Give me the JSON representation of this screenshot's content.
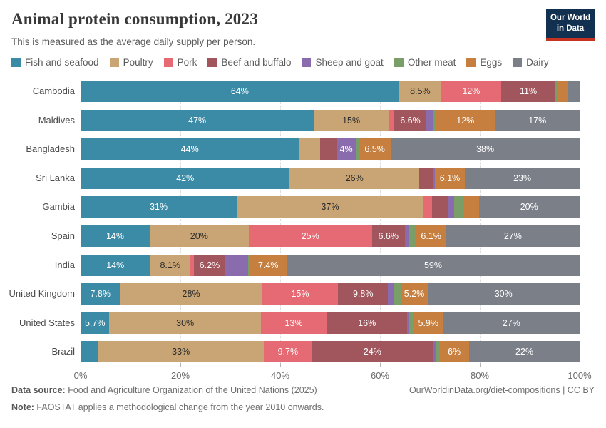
{
  "header": {
    "title": "Animal protein consumption, 2023",
    "subtitle": "This is measured as the average daily supply per person.",
    "logo_line1": "Our World",
    "logo_line2": "in Data",
    "logo_bg_color": "#12304f",
    "logo_stripe_color": "#c5321f"
  },
  "footer": {
    "data_source_label": "Data source:",
    "data_source_text": " Food and Agriculture Organization of the United Nations (2025)",
    "note_label": "Note:",
    "note_text": " FAOSTAT applies a methodological change from the year 2010 onwards.",
    "right_text": "OurWorldinData.org/diet-compositions | CC BY"
  },
  "chart_data": {
    "type": "bar",
    "variant": "horizontal-stacked",
    "title": "Animal protein consumption, 2023",
    "unit": "%",
    "xlim": [
      0,
      100
    ],
    "x_ticks": [
      "0%",
      "20%",
      "40%",
      "60%",
      "80%",
      "100%"
    ],
    "grid": "dashed-vertical",
    "legend_position": "top",
    "categories": [
      {
        "label": "Fish and seafood",
        "color": "#3b8ba7",
        "text_color": "#ffffff"
      },
      {
        "label": "Poultry",
        "color": "#c9a576",
        "text_color": "#2b2b2b"
      },
      {
        "label": "Pork",
        "color": "#e56a73",
        "text_color": "#ffffff"
      },
      {
        "label": "Beef and buffalo",
        "color": "#a0565c",
        "text_color": "#ffffff"
      },
      {
        "label": "Sheep and goat",
        "color": "#8a6bad",
        "text_color": "#ffffff"
      },
      {
        "label": "Other meat",
        "color": "#7a9e67",
        "text_color": "#ffffff"
      },
      {
        "label": "Eggs",
        "color": "#c67f3f",
        "text_color": "#ffffff"
      },
      {
        "label": "Dairy",
        "color": "#7b7f88",
        "text_color": "#ffffff"
      }
    ],
    "rows": [
      {
        "label": "Cambodia",
        "values": [
          64,
          8.5,
          12,
          11,
          0,
          0.3,
          2.1,
          2.4
        ],
        "segment_labels": [
          "64%",
          "8.5%",
          "12%",
          "11%",
          "",
          "",
          "",
          ""
        ]
      },
      {
        "label": "Maldives",
        "values": [
          47,
          15,
          1.1,
          6.6,
          1.4,
          0.4,
          12,
          17
        ],
        "segment_labels": [
          "47%",
          "15%",
          "",
          "6.6%",
          "",
          "",
          "12%",
          "17%"
        ]
      },
      {
        "label": "Bangladesh",
        "values": [
          44,
          4.3,
          0,
          3.2,
          4,
          0.5,
          6.5,
          38
        ],
        "segment_labels": [
          "44%",
          "",
          "",
          "",
          "4%",
          "",
          "6.5%",
          "38%"
        ]
      },
      {
        "label": "Sri Lanka",
        "values": [
          42,
          26,
          0,
          2.7,
          0.4,
          0,
          6.1,
          23
        ],
        "segment_labels": [
          "42%",
          "26%",
          "",
          "",
          "",
          "",
          "6.1%",
          "23%"
        ]
      },
      {
        "label": "Gambia",
        "values": [
          31,
          37,
          1.7,
          3.1,
          1.3,
          1.7,
          3.2,
          20
        ],
        "segment_labels": [
          "31%",
          "37%",
          "",
          "",
          "",
          "",
          "",
          "20%"
        ]
      },
      {
        "label": "Spain",
        "values": [
          14,
          20,
          25,
          6.6,
          0.9,
          1.4,
          6.1,
          27
        ],
        "segment_labels": [
          "14%",
          "20%",
          "25%",
          "6.6%",
          "",
          "",
          "6.1%",
          "27%"
        ]
      },
      {
        "label": "India",
        "values": [
          14,
          8.1,
          0.8,
          6.2,
          4.6,
          0.4,
          7.4,
          59
        ],
        "segment_labels": [
          "14%",
          "8.1%",
          "",
          "6.2%",
          "",
          "",
          "7.4%",
          "59%"
        ]
      },
      {
        "label": "United Kingdom",
        "values": [
          7.8,
          28,
          15,
          9.8,
          1.3,
          1.3,
          5.2,
          30
        ],
        "segment_labels": [
          "7.8%",
          "28%",
          "15%",
          "9.8%",
          "",
          "",
          "5.2%",
          "30%"
        ]
      },
      {
        "label": "United States",
        "values": [
          5.7,
          30,
          13,
          16,
          0.4,
          0.8,
          5.9,
          27
        ],
        "segment_labels": [
          "5.7%",
          "30%",
          "13%",
          "16%",
          "",
          "",
          "5.9%",
          "27%"
        ]
      },
      {
        "label": "Brazil",
        "values": [
          3.5,
          33,
          9.7,
          24,
          0.6,
          0.7,
          6,
          22
        ],
        "segment_labels": [
          "",
          "33%",
          "9.7%",
          "24%",
          "",
          "",
          "6%",
          "22%"
        ]
      }
    ]
  }
}
